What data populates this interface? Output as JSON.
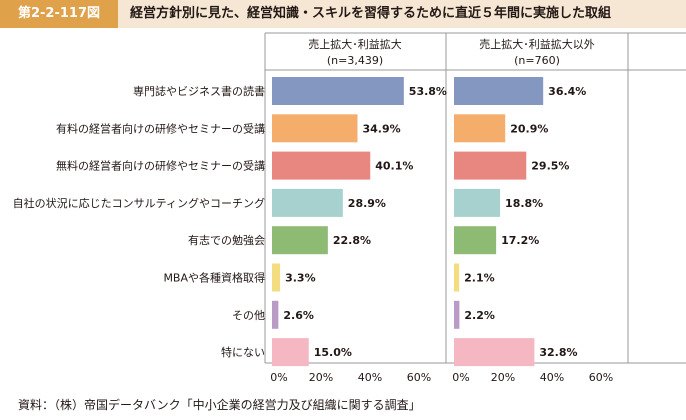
{
  "header": {
    "figure_number": "第2-2-117図",
    "title": "経営方針別に見た、経営知識・スキルを習得するために直近５年間に実施した取組"
  },
  "source": "資料：（株）帝国データバンク「中小企業の経営力及び組織に関する調査」",
  "chart_data": {
    "type": "bar",
    "orientation": "horizontal",
    "categories": [
      "専門誌やビジネス書の読書",
      "有料の経営者向けの研修やセミナーの受講",
      "無料の経営者向けの研修やセミナーの受講",
      "自社の状況に応じたコンサルティングやコーチング",
      "有志での勉強会",
      "MBAや各種資格取得",
      "その他",
      "特にない"
    ],
    "bar_colors": [
      "#8497c0",
      "#f5ad6b",
      "#e88680",
      "#a6d1cf",
      "#8dbb74",
      "#f4dd80",
      "#b99bc6",
      "#f5b7c2"
    ],
    "panels": [
      {
        "title_line1": "売上拡大･利益拡大",
        "title_line2": "(n=3,439)",
        "values": [
          53.8,
          34.9,
          40.1,
          28.9,
          22.8,
          3.3,
          2.6,
          15.0
        ],
        "labels": [
          "53.8%",
          "34.9%",
          "40.1%",
          "28.9%",
          "22.8%",
          "3.3%",
          "2.6%",
          "15.0%"
        ]
      },
      {
        "title_line1": "売上拡大･利益拡大以外",
        "title_line2": "(n=760)",
        "values": [
          36.4,
          20.9,
          29.5,
          18.8,
          17.2,
          2.1,
          2.2,
          32.8
        ],
        "labels": [
          "36.4%",
          "20.9%",
          "29.5%",
          "18.8%",
          "17.2%",
          "2.1%",
          "2.2%",
          "32.8%"
        ]
      }
    ],
    "xlim": [
      0,
      60
    ],
    "xticks": [
      "0%",
      "20%",
      "40%",
      "60%"
    ],
    "grid": false
  }
}
